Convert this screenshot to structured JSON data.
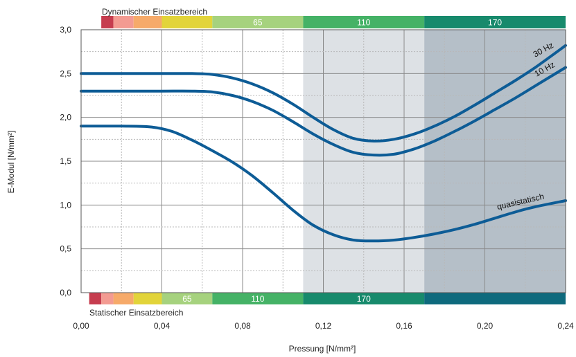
{
  "chart_data": {
    "type": "line",
    "title": "",
    "xlabel": "Pressung [N/mm²]",
    "ylabel": "E-Modul [N/mm²]",
    "xlim": [
      0,
      0.24
    ],
    "ylim": [
      0,
      3.0
    ],
    "x_ticks": [
      "0,00",
      "0,04",
      "0,08",
      "0,12",
      "0,16",
      "0,20",
      "0,24"
    ],
    "y_ticks": [
      "0,0",
      "0,5",
      "1,0",
      "1,5",
      "2,0",
      "2,5",
      "3,0"
    ],
    "grid": true,
    "series": [
      {
        "name": "30 Hz",
        "color": "#0d5c96",
        "points": [
          [
            0,
            2.5
          ],
          [
            0.02,
            2.5
          ],
          [
            0.04,
            2.5
          ],
          [
            0.055,
            2.5
          ],
          [
            0.065,
            2.49
          ],
          [
            0.075,
            2.45
          ],
          [
            0.085,
            2.38
          ],
          [
            0.095,
            2.28
          ],
          [
            0.105,
            2.15
          ],
          [
            0.115,
            2.0
          ],
          [
            0.125,
            1.86
          ],
          [
            0.135,
            1.76
          ],
          [
            0.145,
            1.73
          ],
          [
            0.155,
            1.75
          ],
          [
            0.165,
            1.81
          ],
          [
            0.175,
            1.9
          ],
          [
            0.185,
            2.01
          ],
          [
            0.195,
            2.14
          ],
          [
            0.205,
            2.28
          ],
          [
            0.215,
            2.42
          ],
          [
            0.225,
            2.57
          ],
          [
            0.24,
            2.82
          ]
        ]
      },
      {
        "name": "10 Hz",
        "color": "#0d5c96",
        "points": [
          [
            0,
            2.3
          ],
          [
            0.02,
            2.3
          ],
          [
            0.04,
            2.3
          ],
          [
            0.055,
            2.3
          ],
          [
            0.065,
            2.29
          ],
          [
            0.075,
            2.25
          ],
          [
            0.085,
            2.18
          ],
          [
            0.095,
            2.08
          ],
          [
            0.105,
            1.95
          ],
          [
            0.115,
            1.81
          ],
          [
            0.125,
            1.69
          ],
          [
            0.135,
            1.6
          ],
          [
            0.145,
            1.57
          ],
          [
            0.155,
            1.58
          ],
          [
            0.165,
            1.64
          ],
          [
            0.175,
            1.73
          ],
          [
            0.185,
            1.84
          ],
          [
            0.195,
            1.96
          ],
          [
            0.205,
            2.09
          ],
          [
            0.215,
            2.22
          ],
          [
            0.225,
            2.36
          ],
          [
            0.24,
            2.57
          ]
        ]
      },
      {
        "name": "quasistatisch",
        "color": "#0d5c96",
        "points": [
          [
            0,
            1.9
          ],
          [
            0.02,
            1.9
          ],
          [
            0.035,
            1.89
          ],
          [
            0.045,
            1.84
          ],
          [
            0.055,
            1.74
          ],
          [
            0.065,
            1.62
          ],
          [
            0.075,
            1.49
          ],
          [
            0.085,
            1.33
          ],
          [
            0.095,
            1.14
          ],
          [
            0.105,
            0.94
          ],
          [
            0.115,
            0.77
          ],
          [
            0.125,
            0.66
          ],
          [
            0.135,
            0.6
          ],
          [
            0.145,
            0.59
          ],
          [
            0.155,
            0.6
          ],
          [
            0.165,
            0.63
          ],
          [
            0.175,
            0.67
          ],
          [
            0.185,
            0.72
          ],
          [
            0.195,
            0.78
          ],
          [
            0.205,
            0.85
          ],
          [
            0.215,
            0.92
          ],
          [
            0.225,
            0.98
          ],
          [
            0.24,
            1.05
          ]
        ]
      }
    ],
    "shaded_regions": [
      {
        "x0": 0.11,
        "x1": 0.17,
        "color": "#dde1e5"
      },
      {
        "x0": 0.17,
        "x1": 0.24,
        "color": "#b5bfc8"
      }
    ],
    "dynamic_range": {
      "label": "Dynamischer Einsatzbereich",
      "segments": [
        {
          "x0": 0.01,
          "x1": 0.016,
          "color": "#c63d4f",
          "label": ""
        },
        {
          "x0": 0.016,
          "x1": 0.026,
          "color": "#f39b92",
          "label": ""
        },
        {
          "x0": 0.026,
          "x1": 0.04,
          "color": "#f6aa6a",
          "label": ""
        },
        {
          "x0": 0.04,
          "x1": 0.065,
          "color": "#e2d43a",
          "label": ""
        },
        {
          "x0": 0.065,
          "x1": 0.11,
          "color": "#a6d27e",
          "label": "65"
        },
        {
          "x0": 0.11,
          "x1": 0.17,
          "color": "#45b266",
          "label": "110"
        },
        {
          "x0": 0.17,
          "x1": 0.24,
          "color": "#178a6c",
          "label": "170"
        }
      ]
    },
    "static_range": {
      "label": "Statischer Einsatzbereich",
      "segments": [
        {
          "x0": 0.004,
          "x1": 0.01,
          "color": "#c63d4f",
          "label": ""
        },
        {
          "x0": 0.01,
          "x1": 0.016,
          "color": "#f39b92",
          "label": ""
        },
        {
          "x0": 0.016,
          "x1": 0.026,
          "color": "#f6aa6a",
          "label": ""
        },
        {
          "x0": 0.026,
          "x1": 0.04,
          "color": "#e2d43a",
          "label": ""
        },
        {
          "x0": 0.04,
          "x1": 0.065,
          "color": "#a6d27e",
          "label": "65"
        },
        {
          "x0": 0.065,
          "x1": 0.11,
          "color": "#45b266",
          "label": "110"
        },
        {
          "x0": 0.11,
          "x1": 0.17,
          "color": "#178a6c",
          "label": "170"
        },
        {
          "x0": 0.17,
          "x1": 0.24,
          "color": "#0e6a7d",
          "label": ""
        }
      ]
    }
  }
}
